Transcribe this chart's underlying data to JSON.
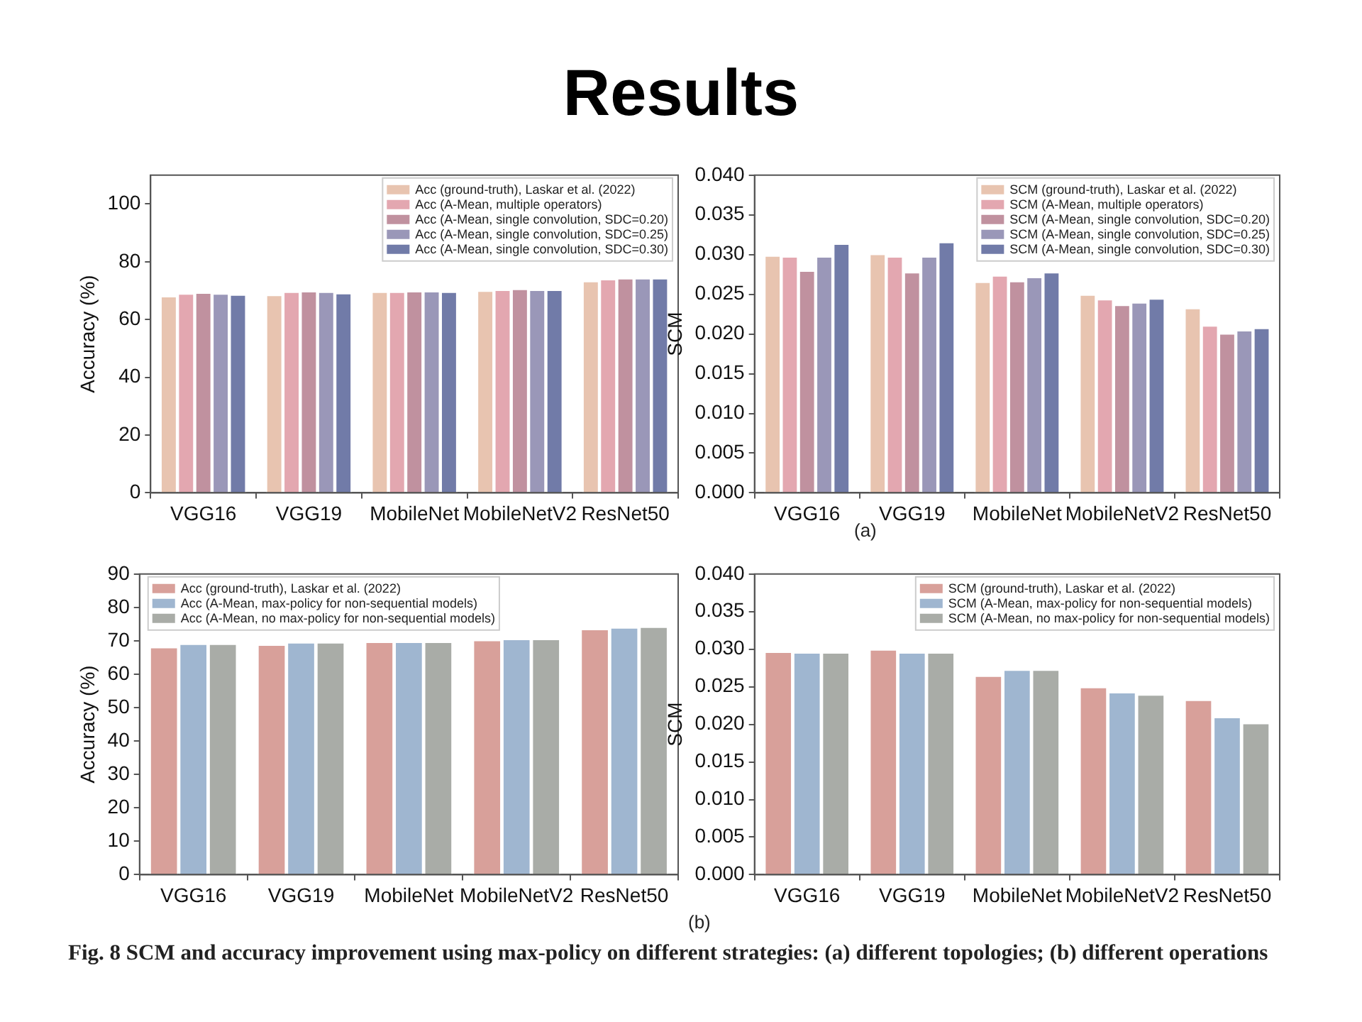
{
  "chart_data": [
    {
      "type": "bar",
      "title": "Results",
      "ylabel": "Accuracy (%)",
      "categories": [
        "VGG16",
        "VGG19",
        "MobileNet",
        "MobileNetV2",
        "ResNet50"
      ],
      "series": [
        {
          "name": "Acc (ground-truth), Laskar et al. (2022)",
          "color": "#e8c4b0",
          "values": [
            68.2,
            68.6,
            69.7,
            70.1,
            73.4
          ]
        },
        {
          "name": "Acc (A-Mean, multiple operators)",
          "color": "#e3a7b0",
          "values": [
            69.1,
            69.7,
            69.7,
            70.4,
            74.1
          ]
        },
        {
          "name": "Acc (A-Mean, single convolution, SDC=0.20)",
          "color": "#c0919f",
          "values": [
            69.4,
            69.9,
            69.9,
            70.7,
            74.4
          ]
        },
        {
          "name": "Acc (A-Mean, single convolution, SDC=0.25)",
          "color": "#9a97b8",
          "values": [
            69.1,
            69.7,
            69.9,
            70.4,
            74.4
          ]
        },
        {
          "name": "Acc (A-Mean, single convolution, SDC=0.30)",
          "color": "#717ba8",
          "values": [
            68.7,
            69.2,
            69.7,
            70.4,
            74.4
          ]
        }
      ],
      "ylim": [
        0,
        110
      ],
      "yticks": [
        0,
        20,
        40,
        60,
        80,
        100
      ],
      "grid": false,
      "legend": "top right"
    },
    {
      "type": "bar",
      "ylabel": "SCM",
      "categories": [
        "VGG16",
        "VGG19",
        "MobileNet",
        "MobileNetV2",
        "ResNet50"
      ],
      "series": [
        {
          "name": "SCM (ground-truth), Laskar et al. (2022)",
          "color": "#e8c4b0",
          "values": [
            0.0299,
            0.0301,
            0.0266,
            0.025,
            0.0233
          ]
        },
        {
          "name": "SCM (A-Mean, multiple operators)",
          "color": "#e3a7b0",
          "values": [
            0.0298,
            0.0298,
            0.0274,
            0.0244,
            0.0211
          ]
        },
        {
          "name": "SCM (A-Mean, single convolution, SDC=0.20)",
          "color": "#c0919f",
          "values": [
            0.028,
            0.0278,
            0.0267,
            0.0237,
            0.0201
          ]
        },
        {
          "name": "SCM (A-Mean, single convolution, SDC=0.25)",
          "color": "#9a97b8",
          "values": [
            0.0298,
            0.0298,
            0.0272,
            0.024,
            0.0205
          ]
        },
        {
          "name": "SCM (A-Mean, single convolution, SDC=0.30)",
          "color": "#717ba8",
          "values": [
            0.0314,
            0.0316,
            0.0278,
            0.0245,
            0.0208
          ]
        }
      ],
      "ylim": [
        0,
        0.04
      ],
      "yticks": [
        {
          "value": 0,
          "label": "0.000"
        },
        {
          "value": 0.005,
          "label": "0.005"
        },
        {
          "value": 0.01,
          "label": "0.010"
        },
        {
          "value": 0.015,
          "label": "0.015"
        },
        {
          "value": 0.02,
          "label": "0.020"
        },
        {
          "value": 0.025,
          "label": "0.025"
        },
        {
          "value": 0.03,
          "label": "0.030"
        },
        {
          "value": 0.035,
          "label": "0.035"
        },
        {
          "value": 0.04,
          "label": "0.040"
        }
      ],
      "grid": false,
      "legend": "top right",
      "annotations": [
        "(a)"
      ]
    },
    {
      "type": "bar",
      "ylabel": "Accuracy (%)",
      "categories": [
        "VGG16",
        "VGG19",
        "MobileNet",
        "MobileNetV2",
        "ResNet50"
      ],
      "series": [
        {
          "name": "Acc (ground-truth), Laskar et al. (2022)",
          "color": "#d8a09a",
          "values": [
            68.2,
            68.9,
            69.8,
            70.3,
            73.6
          ]
        },
        {
          "name": "Acc (A-Mean, max-policy for non-sequential models)",
          "color": "#9fb6d0",
          "values": [
            69.2,
            69.6,
            69.8,
            70.6,
            74.1
          ]
        },
        {
          "name": "Acc (A-Mean, no max-policy for non-sequential models)",
          "color": "#a9aca7",
          "values": [
            69.2,
            69.6,
            69.8,
            70.6,
            74.3
          ]
        }
      ],
      "ylim": [
        0,
        90
      ],
      "yticks": [
        0,
        10,
        20,
        30,
        40,
        50,
        60,
        70,
        80,
        90
      ],
      "grid": false,
      "legend": "top left"
    },
    {
      "type": "bar",
      "ylabel": "SCM",
      "categories": [
        "VGG16",
        "VGG19",
        "MobileNet",
        "MobileNetV2",
        "ResNet50"
      ],
      "series": [
        {
          "name": "SCM (ground-truth), Laskar et al. (2022)",
          "color": "#d8a09a",
          "values": [
            0.0297,
            0.03,
            0.0265,
            0.025,
            0.0233
          ]
        },
        {
          "name": "SCM (A-Mean, max-policy for non-sequential models)",
          "color": "#9fb6d0",
          "values": [
            0.0296,
            0.0296,
            0.0273,
            0.0243,
            0.021
          ]
        },
        {
          "name": "SCM (A-Mean, no max-policy for non-sequential models)",
          "color": "#a9aca7",
          "values": [
            0.0296,
            0.0296,
            0.0273,
            0.024,
            0.0202
          ]
        }
      ],
      "ylim": [
        0,
        0.04
      ],
      "yticks": [
        {
          "value": 0,
          "label": "0.000"
        },
        {
          "value": 0.005,
          "label": "0.005"
        },
        {
          "value": 0.01,
          "label": "0.010"
        },
        {
          "value": 0.015,
          "label": "0.015"
        },
        {
          "value": 0.02,
          "label": "0.020"
        },
        {
          "value": 0.025,
          "label": "0.025"
        },
        {
          "value": 0.03,
          "label": "0.030"
        },
        {
          "value": 0.035,
          "label": "0.035"
        },
        {
          "value": 0.04,
          "label": "0.040"
        }
      ],
      "grid": false,
      "legend": "top right",
      "annotations": [
        "(b)",
        "Fig. 8  SCM and accuracy improvement using max-policy on different strategies: (a) different topologies; (b) different operations"
      ]
    }
  ]
}
